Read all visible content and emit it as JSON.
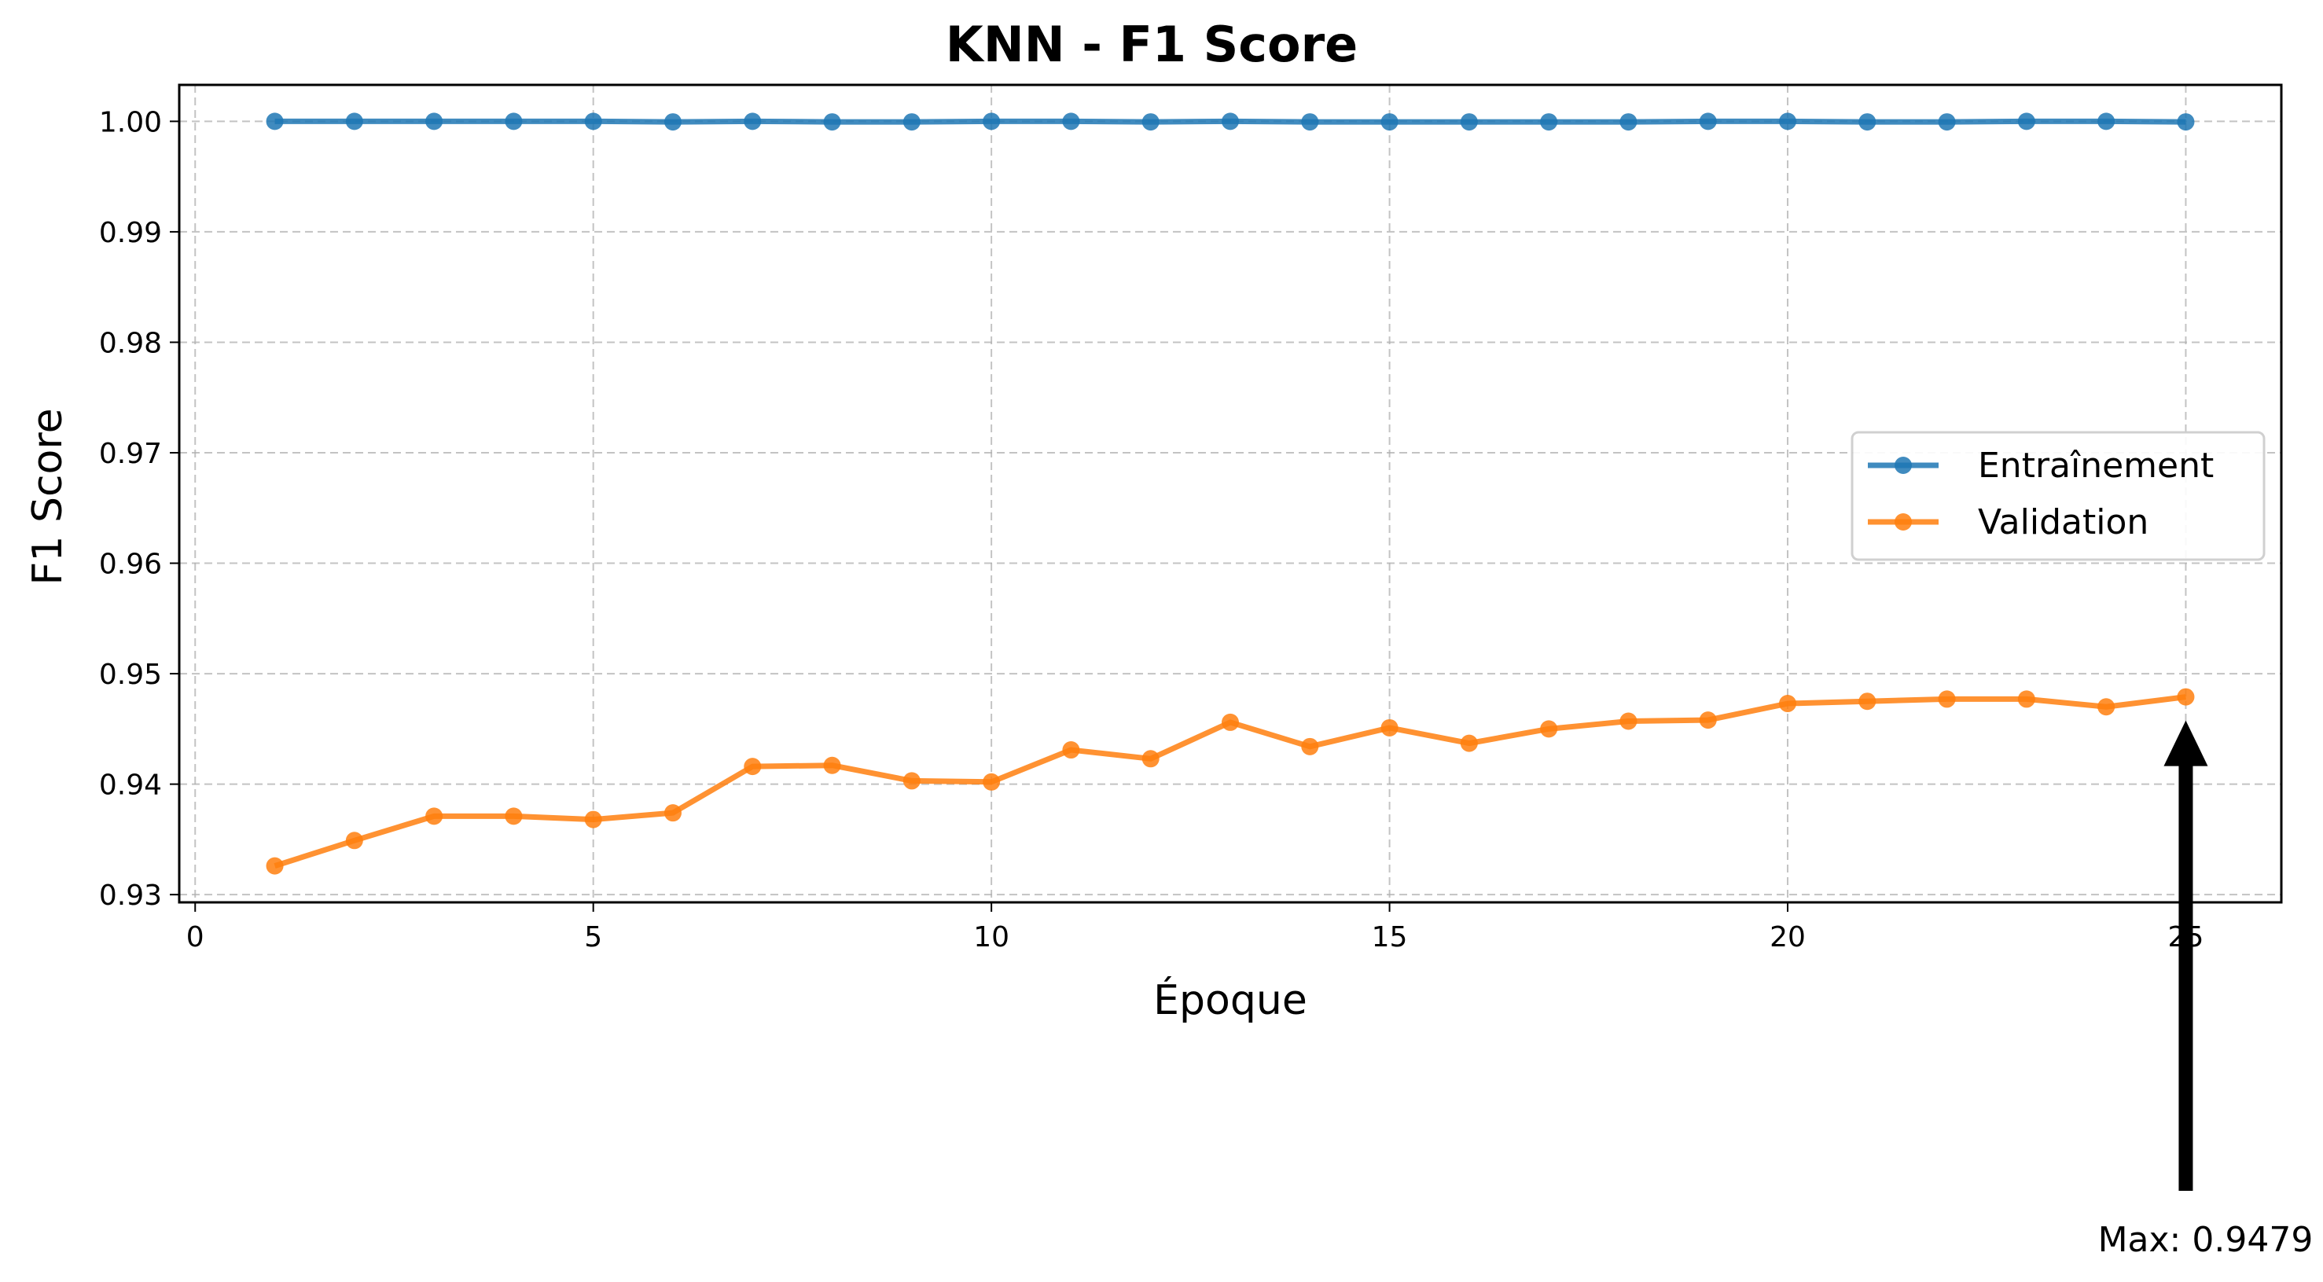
{
  "chart_data": {
    "type": "line",
    "title": "KNN - F1 Score",
    "xlabel": "Époque",
    "ylabel": "F1 Score",
    "xlim": [
      -0.2,
      26.2
    ],
    "ylim": [
      0.9293,
      1.0033
    ],
    "xticks": [
      0,
      5,
      10,
      15,
      20,
      25
    ],
    "xtick_labels": [
      "0",
      "5",
      "10",
      "15",
      "20",
      "25"
    ],
    "yticks": [
      0.93,
      0.94,
      0.95,
      0.96,
      0.97,
      0.98,
      0.99,
      1.0
    ],
    "ytick_labels": [
      "0.93",
      "0.94",
      "0.95",
      "0.96",
      "0.97",
      "0.98",
      "0.99",
      "1.00"
    ],
    "grid": true,
    "legend_position": "center-right",
    "x": [
      1,
      2,
      3,
      4,
      5,
      6,
      7,
      8,
      9,
      10,
      11,
      12,
      13,
      14,
      15,
      16,
      17,
      18,
      19,
      20,
      21,
      22,
      23,
      24,
      25
    ],
    "series": [
      {
        "name": "Entraînement",
        "color": "#1f77b4",
        "values": [
          1.0,
          1.0,
          1.0,
          1.0,
          1.0,
          0.99995,
          1.0,
          0.99995,
          0.99995,
          1.0,
          1.0,
          0.99995,
          1.0,
          0.99995,
          0.99995,
          0.99995,
          0.99995,
          0.99995,
          1.0,
          1.0,
          0.99995,
          0.99995,
          1.0,
          1.0,
          0.99995
        ]
      },
      {
        "name": "Validation",
        "color": "#ff7f0e",
        "values": [
          0.9326,
          0.9349,
          0.9371,
          0.9371,
          0.9368,
          0.9374,
          0.9416,
          0.9417,
          0.9403,
          0.9402,
          0.9431,
          0.9423,
          0.9456,
          0.9434,
          0.9451,
          0.9437,
          0.945,
          0.9457,
          0.9458,
          0.9473,
          0.9475,
          0.9477,
          0.9477,
          0.947,
          0.9479
        ]
      }
    ],
    "annotation": {
      "text": "Max: 0.9479",
      "x": 25,
      "y": 0.9479,
      "arrow_color": "#000000"
    }
  }
}
